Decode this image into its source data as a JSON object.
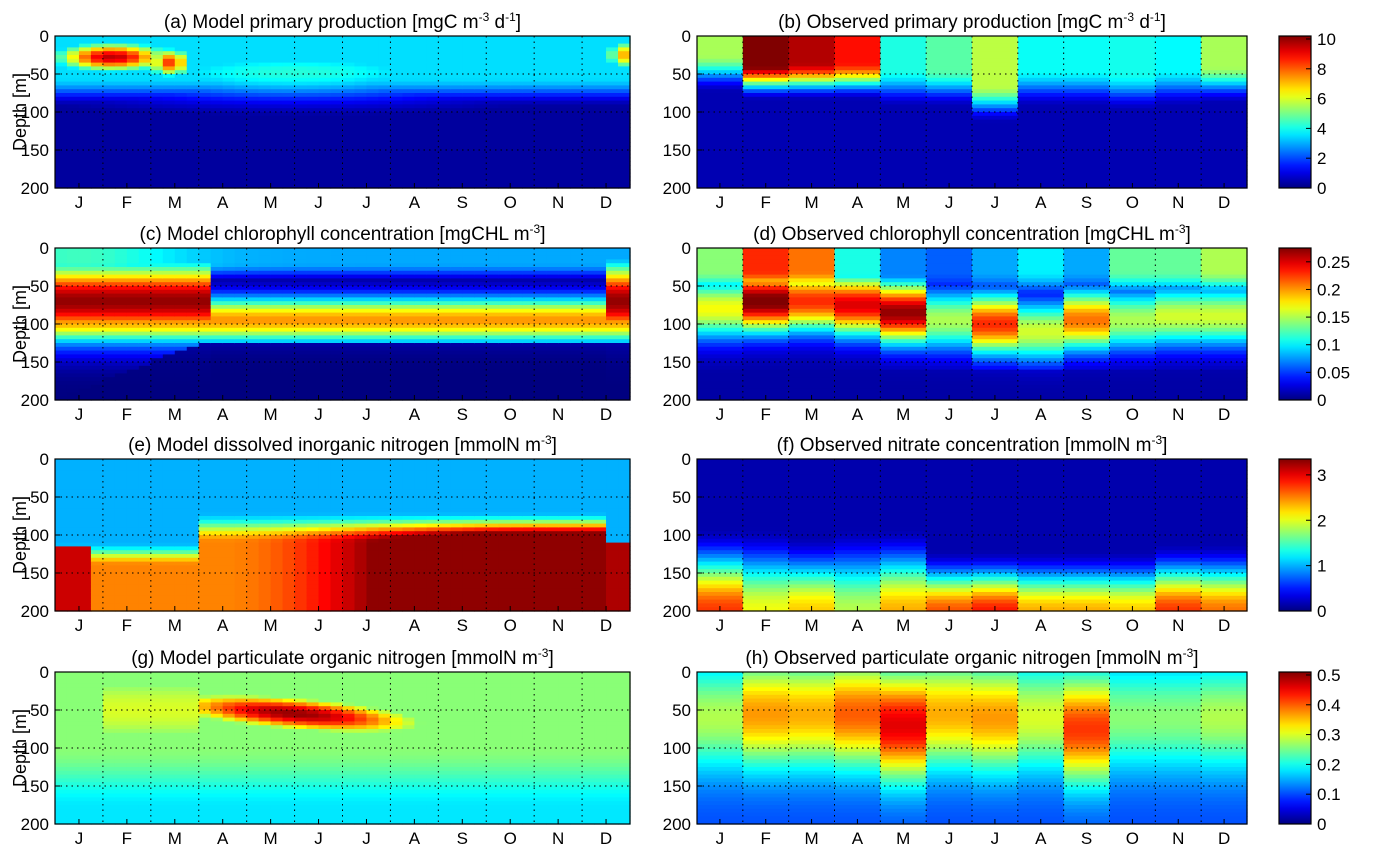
{
  "chart_data": {
    "type": "heatmap",
    "months": [
      "J",
      "F",
      "M",
      "A",
      "M",
      "J",
      "J",
      "A",
      "S",
      "O",
      "N",
      "D"
    ],
    "depth_ticks": [
      0,
      50,
      100,
      150,
      200
    ],
    "depth_unit_label": "Depth [m]",
    "colormap": "jet",
    "rows": [
      {
        "colorbar": {
          "min": 0,
          "max": 10.2,
          "ticks": [
            "0",
            "2",
            "4",
            "6",
            "8",
            "10"
          ],
          "tick_values": [
            0,
            2,
            4,
            6,
            8,
            10
          ]
        },
        "model": {
          "title": "(a) Model primary production [mgC m-3 d-1]",
          "title_main": "(a) Model primary production [mgC m",
          "title_sup1": "-3",
          "title_mid": " d",
          "title_sup2": "-1",
          "title_end": "]",
          "features": [
            {
              "month": 1.7,
              "depth": 28,
              "value": 9.6,
              "spread_m": 0.9,
              "spread_d": 14
            },
            {
              "month": 2.9,
              "depth": 35,
              "value": 8.4,
              "spread_m": 0.35,
              "spread_d": 14
            },
            {
              "month": 12.5,
              "depth": 25,
              "value": 7.5,
              "spread_m": 0.4,
              "spread_d": 14
            },
            {
              "month": 5.5,
              "depth": 48,
              "value": 4.2,
              "spread_m": 3.5,
              "spread_d": 25
            }
          ]
        },
        "observed": {
          "title_main": "(b) Observed primary production [mgC m",
          "title_sup1": "-3",
          "title_mid": " d",
          "title_sup2": "-1",
          "title_end": "]",
          "surface": [
            5.0,
            10.2,
            9.2,
            8.3,
            3.6,
            4.2,
            5.2,
            3.4,
            3.4,
            3.5,
            3.3,
            5.0
          ],
          "mixed_layer_depth": [
            35,
            45,
            45,
            45,
            55,
            55,
            75,
            55,
            55,
            60,
            55,
            50
          ]
        }
      },
      {
        "colorbar": {
          "min": 0,
          "max": 0.275,
          "ticks": [
            "0",
            "0.05",
            "0.1",
            "0.15",
            "0.2",
            "0.25"
          ],
          "tick_values": [
            0,
            0.05,
            0.1,
            0.15,
            0.2,
            0.25
          ]
        },
        "model": {
          "title_main": "(c) Model chlorophyll concentration [mgCHL m",
          "title_sup1": "-3",
          "title_mid": "",
          "title_sup2": "",
          "title_end": "]",
          "deep_max_depth": 95,
          "deep_max_value": 0.2
        },
        "observed": {
          "title_main": "(d) Observed chlorophyll concentration [mgCHL m",
          "title_sup1": "-3",
          "title_mid": "",
          "title_sup2": "",
          "title_end": "]",
          "surface": [
            0.13,
            0.22,
            0.2,
            0.1,
            0.06,
            0.05,
            0.07,
            0.09,
            0.07,
            0.12,
            0.12,
            0.14
          ],
          "dcm_depth": [
            80,
            70,
            70,
            75,
            85,
            95,
            100,
            110,
            95,
            95,
            90,
            90
          ],
          "dcm_value": [
            0.16,
            0.27,
            0.22,
            0.24,
            0.26,
            0.14,
            0.22,
            0.15,
            0.2,
            0.14,
            0.15,
            0.15
          ]
        }
      },
      {
        "colorbar": {
          "min": 0,
          "max": 3.35,
          "ticks": [
            "0",
            "1",
            "2",
            "3"
          ],
          "tick_values": [
            0,
            1,
            2,
            3
          ]
        },
        "model": {
          "title_main": "(e) Model dissolved inorganic nitrogen [mmolN m",
          "title_sup1": "-3",
          "title_mid": "",
          "title_sup2": "",
          "title_end": "]",
          "deep_value": 3.2
        },
        "observed": {
          "title_main": "(f) Observed nitrate concentration [mmolN m",
          "title_sup1": "-3",
          "title_mid": "",
          "title_sup2": "",
          "title_end": "]",
          "bottom": [
            2.6,
            1.9,
            2.1,
            1.7,
            2.2,
            2.5,
            2.7,
            2.2,
            2.2,
            2.1,
            2.6,
            2.4
          ],
          "nitracline_depth": [
            110,
            110,
            120,
            110,
            110,
            140,
            140,
            140,
            140,
            140,
            130,
            130
          ]
        }
      },
      {
        "colorbar": {
          "min": 0,
          "max": 0.51,
          "ticks": [
            "0",
            "0.1",
            "0.2",
            "0.3",
            "0.4",
            "0.5"
          ],
          "tick_values": [
            0,
            0.1,
            0.2,
            0.3,
            0.4,
            0.5
          ]
        },
        "model": {
          "title_main": "(g) Model particulate organic nitrogen [mmolN m",
          "title_sup1": "-3",
          "title_mid": "",
          "title_sup2": "",
          "title_end": "]",
          "peak_value": 0.5
        },
        "observed": {
          "title_main": "(h) Observed particulate organic nitrogen [mmolN m",
          "title_sup1": "-3",
          "title_mid": "",
          "title_sup2": "",
          "title_end": "]",
          "peak": [
            0.28,
            0.37,
            0.36,
            0.4,
            0.46,
            0.36,
            0.37,
            0.3,
            0.42,
            0.26,
            0.26,
            0.28
          ],
          "peak_depth": [
            60,
            55,
            55,
            55,
            70,
            55,
            60,
            60,
            75,
            60,
            60,
            60
          ]
        }
      }
    ]
  }
}
